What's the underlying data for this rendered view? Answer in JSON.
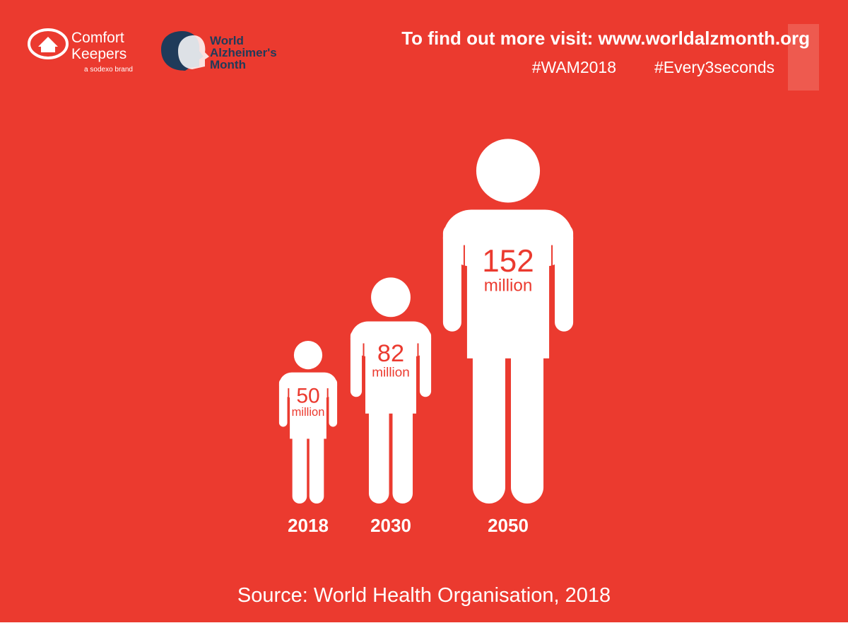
{
  "header": {
    "brand_1": "Comfort",
    "brand_2": "Keepers",
    "brand_tagline": "a sodexo brand",
    "partner_1": "World",
    "partner_2": "Alzheimer's",
    "partner_3": "Month",
    "visit": "To find out more visit: www.worldalzmonth.org",
    "hashtag_1": "#WAM2018",
    "hashtag_2": "#Every3seconds"
  },
  "chart_data": {
    "type": "pictograph",
    "categories": [
      "2018",
      "2030",
      "2050"
    ],
    "values": [
      50,
      82,
      152
    ],
    "unit": "million",
    "color": "#ffffff",
    "source": "Source: World Health Organisation, 2018"
  }
}
